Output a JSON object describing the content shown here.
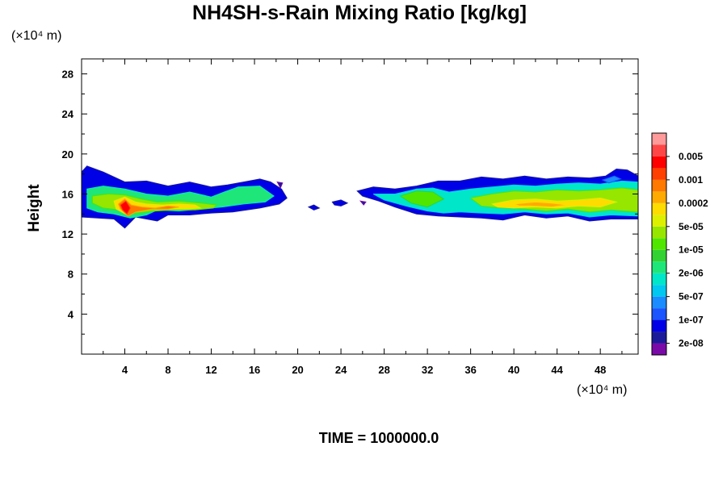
{
  "chart_data": {
    "type": "heatmap",
    "title": "NH4SH-s-Rain Mixing Ratio [kg/kg]",
    "ylabel": "Height",
    "x_unit": "(×10⁴ m)",
    "y_unit": "(×10⁴ m)",
    "xlim": [
      0,
      51.5
    ],
    "ylim": [
      0,
      29.5
    ],
    "x_ticks": [
      4,
      8,
      12,
      16,
      20,
      24,
      28,
      32,
      36,
      40,
      44,
      48
    ],
    "x_tick_labels": [
      "4",
      "8",
      "12",
      "16",
      "20",
      "24",
      "28",
      "32",
      "36",
      "40",
      "44",
      "48"
    ],
    "y_ticks": [
      4,
      8,
      12,
      16,
      20,
      24,
      28
    ],
    "y_tick_labels": [
      "4",
      "8",
      "12",
      "16",
      "20",
      "24",
      "28"
    ],
    "footer": "TIME = 1000000.0",
    "colorbar": {
      "colors": [
        "#7a0aa8",
        "#1a1a9a",
        "#0000e6",
        "#1a55ff",
        "#1a8cff",
        "#00c8f0",
        "#00e6c8",
        "#1ee678",
        "#32d232",
        "#50e600",
        "#96e600",
        "#dcf000",
        "#ffdc00",
        "#ffaa00",
        "#ff7800",
        "#ff4000",
        "#ff0000",
        "#ff4646",
        "#ff9a9a"
      ],
      "labels": [
        "2e-08",
        "1e-07",
        "5e-07",
        "2e-06",
        "1e-05",
        "5e-05",
        "0.0002",
        "0.001",
        "0.005"
      ]
    },
    "regions": [
      {
        "name": "cloud-left",
        "x": [
          0,
          0.5,
          2,
          4,
          6,
          8,
          10,
          12,
          13.5,
          15,
          16.5,
          17.5,
          18.5,
          19,
          18.3,
          16.5,
          14,
          12,
          10,
          8,
          7,
          5,
          4,
          3,
          1.5,
          0
        ],
        "y": [
          18.2,
          18.8,
          18.2,
          17.2,
          17.3,
          16.8,
          17.2,
          16.7,
          16.9,
          17.2,
          17.5,
          17.2,
          16.5,
          15.6,
          15,
          14.6,
          14.2,
          14.1,
          13.9,
          13.9,
          13.3,
          13.7,
          12.6,
          13.5,
          13.6,
          13.7
        ],
        "level": 2
      },
      {
        "name": "core-left",
        "x": [
          0.5,
          2,
          4,
          6,
          8,
          10,
          12,
          13.2,
          14.5,
          16.5,
          17.8,
          17,
          15,
          13,
          11,
          9,
          7,
          6,
          4.5,
          3,
          1.5,
          0.5
        ],
        "y": [
          16.5,
          16.8,
          16.5,
          16,
          15.8,
          16.2,
          15.7,
          16.2,
          16.7,
          16.8,
          15.8,
          15.2,
          15,
          14.7,
          14.5,
          14.3,
          14.4,
          13.9,
          13.6,
          14,
          14.2,
          14.6
        ],
        "level": 7
      },
      {
        "name": "inner-left",
        "x": [
          1,
          2.5,
          4,
          5.5,
          7,
          9,
          11,
          12.5,
          12.2,
          10.5,
          8.5,
          6.8,
          5,
          3.5,
          2,
          1
        ],
        "y": [
          15.8,
          16,
          15.9,
          15.5,
          15.2,
          15.3,
          15.1,
          14.9,
          14.6,
          14.4,
          14.4,
          14.3,
          14.1,
          14.4,
          14.6,
          15.1
        ],
        "level": 10
      },
      {
        "name": "yellow-left",
        "x": [
          3,
          4,
          5,
          6,
          7.5,
          9,
          10.5,
          11,
          9.5,
          8,
          6.5,
          5,
          4.2,
          3.2
        ],
        "y": [
          15.3,
          15.7,
          15.2,
          15,
          14.9,
          15,
          14.9,
          14.6,
          14.5,
          14.5,
          14.6,
          14.3,
          13.9,
          14.5
        ],
        "level": 12
      },
      {
        "name": "orange-left",
        "x": [
          3.4,
          4,
          4.6,
          5.6,
          6.8,
          8,
          9,
          8,
          6.5,
          5,
          4.3,
          3.6
        ],
        "y": [
          15,
          15.5,
          14.9,
          14.7,
          14.6,
          14.8,
          14.7,
          14.5,
          14.5,
          14.2,
          13.8,
          14.5
        ],
        "level": 14
      },
      {
        "name": "red-left",
        "x": [
          3.6,
          4.1,
          4.5,
          4.2,
          3.8
        ],
        "y": [
          14.9,
          15.3,
          14.6,
          14,
          14.4
        ],
        "level": 16
      },
      {
        "name": "cloud-right",
        "x": [
          25.5,
          27,
          29,
          31,
          33,
          35,
          37,
          39,
          41,
          43,
          45,
          47,
          48.5,
          49.5,
          50.5,
          51.5,
          51.5,
          49,
          47,
          45,
          43,
          41,
          39,
          37,
          35,
          33,
          31,
          29,
          27.5,
          26
        ],
        "y": [
          16.3,
          16.7,
          16.5,
          16.8,
          17.3,
          17.3,
          17.7,
          17.5,
          17.8,
          17.5,
          17.7,
          17.6,
          17.8,
          18.5,
          18.4,
          17.8,
          13.5,
          13.5,
          13.3,
          13.8,
          13.6,
          13.9,
          13.4,
          13.6,
          13.7,
          13.8,
          14,
          14.7,
          15.3,
          15.8
        ],
        "level": 2
      },
      {
        "name": "core-right",
        "x": [
          27,
          29,
          31,
          32.5,
          34,
          36,
          38,
          40,
          42,
          44,
          46,
          48,
          50,
          51.5,
          51.5,
          49,
          47,
          45,
          43,
          41,
          39,
          37,
          35,
          33.5,
          32,
          30,
          28
        ],
        "y": [
          16,
          16,
          16.5,
          16.6,
          16.2,
          16.5,
          16.7,
          16.9,
          16.8,
          17,
          17.1,
          17,
          17.3,
          17.2,
          13.8,
          13.9,
          13.7,
          14.1,
          14,
          14.2,
          14,
          14.1,
          14.2,
          14.1,
          14.3,
          14.8,
          15.4
        ],
        "level": 6
      },
      {
        "name": "inner-right",
        "x": [
          29.5,
          31,
          32.5,
          33.5,
          32,
          30.5
        ],
        "y": [
          15.8,
          16.3,
          16.2,
          15.5,
          14.7,
          15.1
        ],
        "level": 9
      },
      {
        "name": "inner-right-2",
        "x": [
          36,
          38,
          40,
          42,
          44,
          46,
          48,
          50,
          51.5,
          51.5,
          49,
          47,
          45,
          43,
          41,
          39,
          37
        ],
        "y": [
          15.6,
          16,
          16.3,
          16.2,
          16.4,
          16.3,
          16.4,
          16.6,
          16.4,
          14.2,
          14.4,
          14.2,
          14.5,
          14.3,
          14.5,
          14.6,
          14.8
        ],
        "level": 10
      },
      {
        "name": "yellow-right",
        "x": [
          38,
          40,
          42,
          44,
          46,
          48,
          49.5,
          48,
          46,
          44,
          42,
          40,
          38.5
        ],
        "y": [
          15,
          15.4,
          15.5,
          15.3,
          15.4,
          15.6,
          15.2,
          14.7,
          14.8,
          14.6,
          14.7,
          14.6,
          14.7
        ],
        "level": 12
      },
      {
        "name": "orange-right",
        "x": [
          40,
          42,
          43.5,
          45,
          43.5,
          41.5,
          40.5
        ],
        "y": [
          15,
          15.2,
          15.1,
          14.9,
          14.7,
          14.8,
          14.8
        ],
        "level": 13
      },
      {
        "name": "spot-1",
        "x": [
          21,
          21.5,
          22,
          21.5
        ],
        "y": [
          14.7,
          14.9,
          14.6,
          14.4
        ],
        "level": 2
      },
      {
        "name": "spot-2",
        "x": [
          23.2,
          24,
          24.6,
          24,
          23.4
        ],
        "y": [
          15.2,
          15.4,
          15.1,
          14.8,
          14.9
        ],
        "level": 2
      },
      {
        "name": "spot-3",
        "x": [
          25.8,
          26.3,
          26.1
        ],
        "y": [
          15.3,
          15.2,
          14.9
        ],
        "level": 1
      },
      {
        "name": "spot-4",
        "x": [
          18.1,
          18.6,
          18.4
        ],
        "y": [
          17.2,
          17.1,
          16.6
        ],
        "level": 1
      },
      {
        "name": "spot-5",
        "x": [
          48.2,
          49.3,
          49.9,
          48.8
        ],
        "y": [
          17.4,
          17.8,
          17.5,
          17.1
        ],
        "level": 4
      }
    ]
  }
}
